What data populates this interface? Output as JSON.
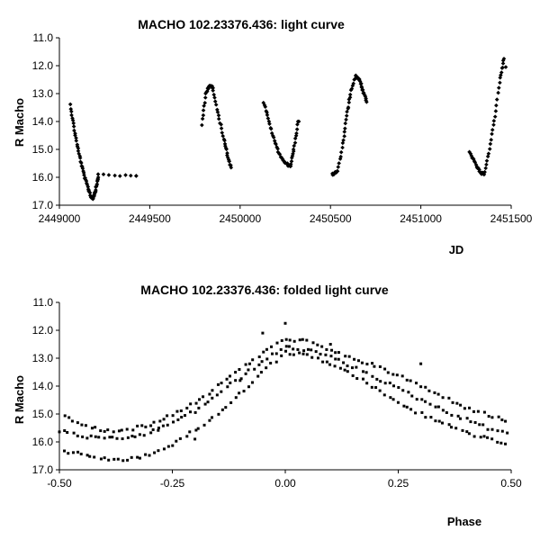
{
  "chart_data": [
    {
      "type": "scatter",
      "title": "MACHO 102.23376.436: light curve",
      "xlabel": "JD",
      "ylabel": "R Macho",
      "xlim": [
        2449000,
        2451500
      ],
      "ylim": [
        11.0,
        17.0
      ],
      "y_inverted": true,
      "grid": false,
      "legend": "none",
      "xticks": [
        2449000,
        2449500,
        2450000,
        2450500,
        2451000,
        2451500
      ],
      "xtick_labels": [
        "2449000",
        "2449500",
        "2450000",
        "2450500",
        "2451000",
        "2451500"
      ],
      "yticks": [
        11.0,
        12.0,
        13.0,
        14.0,
        15.0,
        16.0,
        17.0
      ],
      "ytick_labels": [
        "11.0",
        "12.0",
        "13.0",
        "14.0",
        "15.0",
        "16.0",
        "17.0"
      ],
      "marker": "diamond",
      "marker_color": "#000000",
      "segments": [
        {
          "x": [
            2449060,
            2449080,
            2449100,
            2449120,
            2449140,
            2449160,
            2449175,
            2449185
          ],
          "y": [
            13.4,
            14.2,
            14.9,
            15.5,
            16.0,
            16.4,
            16.7,
            16.75
          ]
        },
        {
          "x": [
            2449185,
            2449195,
            2449205,
            2449215
          ],
          "y": [
            16.75,
            16.6,
            16.3,
            16.0
          ]
        },
        {
          "x": [
            2449215,
            2449425
          ],
          "y": [
            15.9,
            15.95
          ]
        },
        {
          "x": [
            2449790,
            2449810,
            2449830,
            2449850
          ],
          "y": [
            14.1,
            13.0,
            12.7,
            12.8
          ]
        },
        {
          "x": [
            2449850,
            2449880,
            2449910,
            2449930,
            2449950
          ],
          "y": [
            12.9,
            13.8,
            14.6,
            15.2,
            15.65
          ]
        },
        {
          "x": [
            2450130,
            2450160,
            2450190,
            2450220,
            2450250,
            2450280
          ],
          "y": [
            13.3,
            14.0,
            14.7,
            15.2,
            15.5,
            15.6
          ]
        },
        {
          "x": [
            2450280,
            2450300,
            2450320
          ],
          "y": [
            15.5,
            14.9,
            14.0
          ]
        },
        {
          "x": [
            2450510,
            2450540,
            2450570,
            2450590,
            2450610,
            2450640
          ],
          "y": [
            15.9,
            15.8,
            14.8,
            13.8,
            13.0,
            12.35
          ]
        },
        {
          "x": [
            2450640,
            2450660,
            2450680,
            2450700
          ],
          "y": [
            12.35,
            12.5,
            12.9,
            13.3
          ]
        },
        {
          "x": [
            2451270,
            2451300,
            2451330,
            2451350
          ],
          "y": [
            15.1,
            15.5,
            15.85,
            15.9
          ]
        },
        {
          "x": [
            2451350,
            2451380,
            2451410,
            2451440,
            2451460
          ],
          "y": [
            15.9,
            15.0,
            13.8,
            12.4,
            11.75
          ]
        }
      ],
      "points": [
        {
          "x": 2451470,
          "y": 12.05
        },
        {
          "x": 2449425,
          "y": 15.95
        },
        {
          "x": 2450325,
          "y": 14.0
        }
      ]
    },
    {
      "type": "scatter",
      "title": "MACHO 102.23376.436: folded light curve",
      "xlabel": "Phase",
      "ylabel": "R Macho",
      "xlim": [
        -0.5,
        0.5
      ],
      "ylim": [
        11.0,
        17.0
      ],
      "y_inverted": true,
      "grid": false,
      "legend": "none",
      "xticks": [
        -0.5,
        -0.25,
        0,
        0.25,
        0.5
      ],
      "xtick_labels": [
        "-0.50",
        "-0.25",
        "0.00",
        "0.25",
        "0.50"
      ],
      "yticks": [
        11.0,
        12.0,
        13.0,
        14.0,
        15.0,
        16.0,
        17.0
      ],
      "ytick_labels": [
        "11.0",
        "12.0",
        "13.0",
        "14.0",
        "15.0",
        "16.0",
        "17.0"
      ],
      "marker": "square",
      "marker_color": "#000000",
      "bands": [
        {
          "x": [
            -0.5,
            -0.45,
            -0.4,
            -0.35,
            -0.3,
            -0.25,
            -0.2,
            -0.15,
            -0.1,
            -0.05,
            0.0,
            0.05,
            0.1,
            0.15,
            0.2,
            0.25,
            0.3,
            0.35,
            0.4,
            0.45,
            0.5
          ],
          "y": [
            15.0,
            15.4,
            15.6,
            15.55,
            15.4,
            15.0,
            14.6,
            14.0,
            13.4,
            12.8,
            12.3,
            12.4,
            12.75,
            13.0,
            13.3,
            13.6,
            14.0,
            14.4,
            14.75,
            15.05,
            15.3
          ]
        },
        {
          "x": [
            -0.5,
            -0.45,
            -0.4,
            -0.35,
            -0.3,
            -0.25,
            -0.2,
            -0.15,
            -0.1,
            -0.05,
            0.0,
            0.05,
            0.1,
            0.15,
            0.2,
            0.25,
            0.3,
            0.35,
            0.4,
            0.45,
            0.5
          ],
          "y": [
            15.6,
            15.8,
            15.9,
            15.85,
            15.7,
            15.3,
            14.9,
            14.3,
            13.7,
            13.1,
            12.6,
            12.7,
            12.95,
            13.3,
            13.7,
            14.1,
            14.5,
            14.85,
            15.2,
            15.5,
            15.7
          ]
        },
        {
          "x": [
            -0.5,
            -0.45,
            -0.4,
            -0.35,
            -0.3,
            -0.25,
            -0.2,
            -0.15,
            -0.1,
            -0.05,
            0.0,
            0.05,
            0.1,
            0.15,
            0.2,
            0.25,
            0.3,
            0.35,
            0.4,
            0.45,
            0.5
          ],
          "y": [
            16.3,
            16.45,
            16.6,
            16.65,
            16.45,
            16.1,
            15.6,
            15.0,
            14.3,
            13.5,
            12.8,
            12.9,
            13.2,
            13.6,
            14.1,
            14.6,
            15.0,
            15.35,
            15.65,
            15.9,
            16.1
          ]
        }
      ],
      "points": [
        {
          "x": 0.0,
          "y": 11.75
        },
        {
          "x": -0.05,
          "y": 12.1
        },
        {
          "x": 0.1,
          "y": 12.5
        },
        {
          "x": -0.28,
          "y": 15.5
        },
        {
          "x": -0.1,
          "y": 13.8
        },
        {
          "x": 0.3,
          "y": 13.2
        },
        {
          "x": -0.2,
          "y": 15.9
        }
      ]
    }
  ]
}
